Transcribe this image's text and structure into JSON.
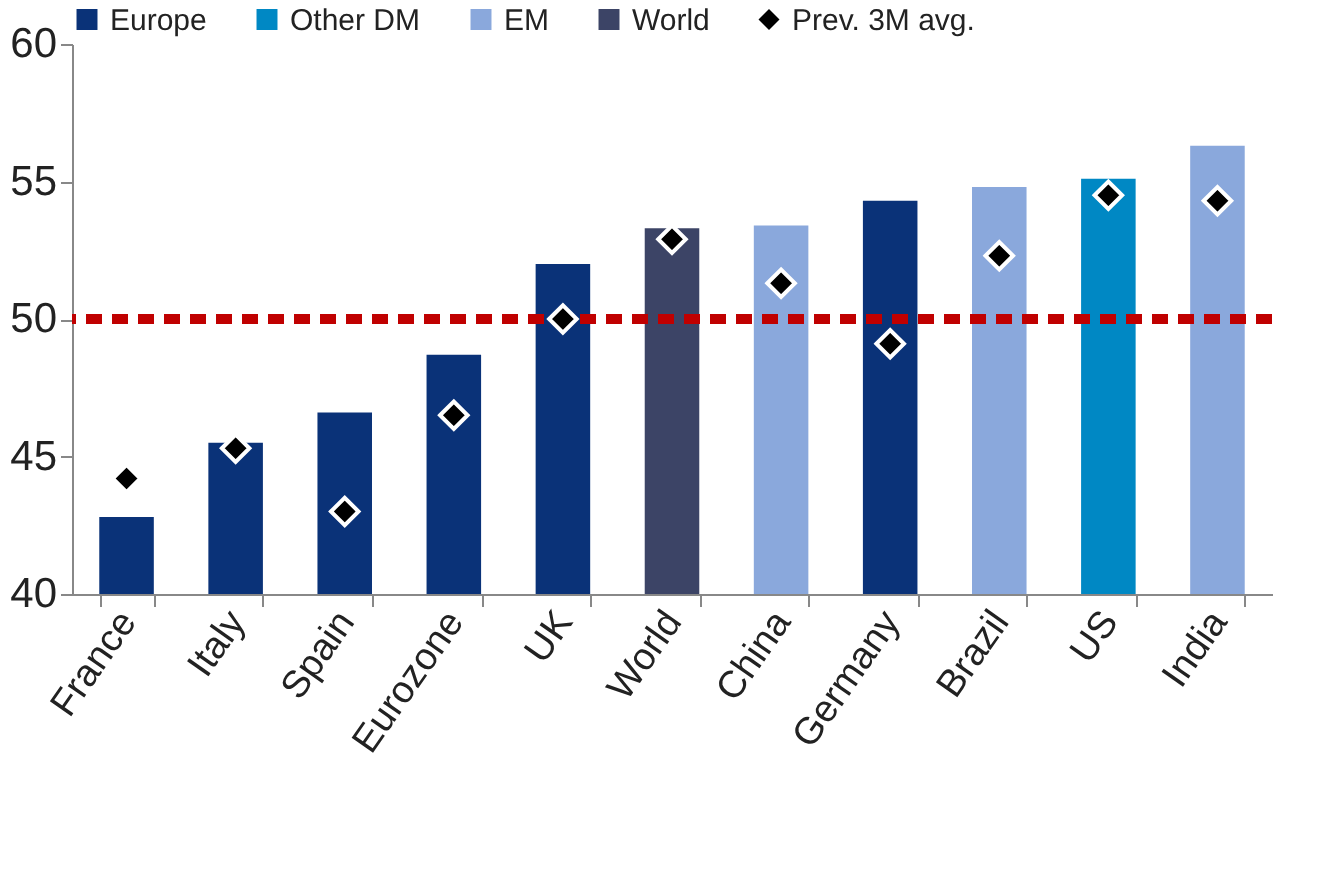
{
  "chart_data": {
    "type": "bar",
    "categories": [
      "France",
      "Italy",
      "Spain",
      "Eurozone",
      "UK",
      "World",
      "China",
      "Germany",
      "Brazil",
      "US",
      "India"
    ],
    "series": [
      {
        "name": "Europe",
        "color": "#0a3278",
        "values": [
          42.8,
          45.5,
          46.6,
          48.7,
          52.0,
          null,
          null,
          54.3,
          null,
          null,
          null
        ]
      },
      {
        "name": "Other DM",
        "color": "#0088c4",
        "values": [
          null,
          null,
          null,
          null,
          null,
          null,
          null,
          null,
          null,
          55.1,
          null
        ]
      },
      {
        "name": "EM",
        "color": "#8aa8dc",
        "values": [
          null,
          null,
          null,
          null,
          null,
          null,
          53.4,
          null,
          54.8,
          null,
          56.3
        ]
      },
      {
        "name": "World",
        "color": "#3c4466",
        "values": [
          null,
          null,
          null,
          null,
          null,
          53.3,
          null,
          null,
          null,
          null,
          null
        ]
      },
      {
        "name": "Prev. 3M avg.",
        "type": "scatter",
        "color": "#000000",
        "marker": "diamond",
        "values": [
          44.2,
          45.3,
          43.0,
          46.5,
          50.0,
          52.9,
          51.3,
          49.1,
          52.3,
          54.5,
          54.3
        ]
      }
    ],
    "ylim": [
      40,
      60
    ],
    "yticks": [
      40,
      45,
      50,
      55,
      60
    ],
    "ref_lines": [
      {
        "axis": "y",
        "value": 50,
        "color": "#c00000",
        "line_style": "dashed"
      }
    ],
    "legend": "top",
    "grid": false
  }
}
